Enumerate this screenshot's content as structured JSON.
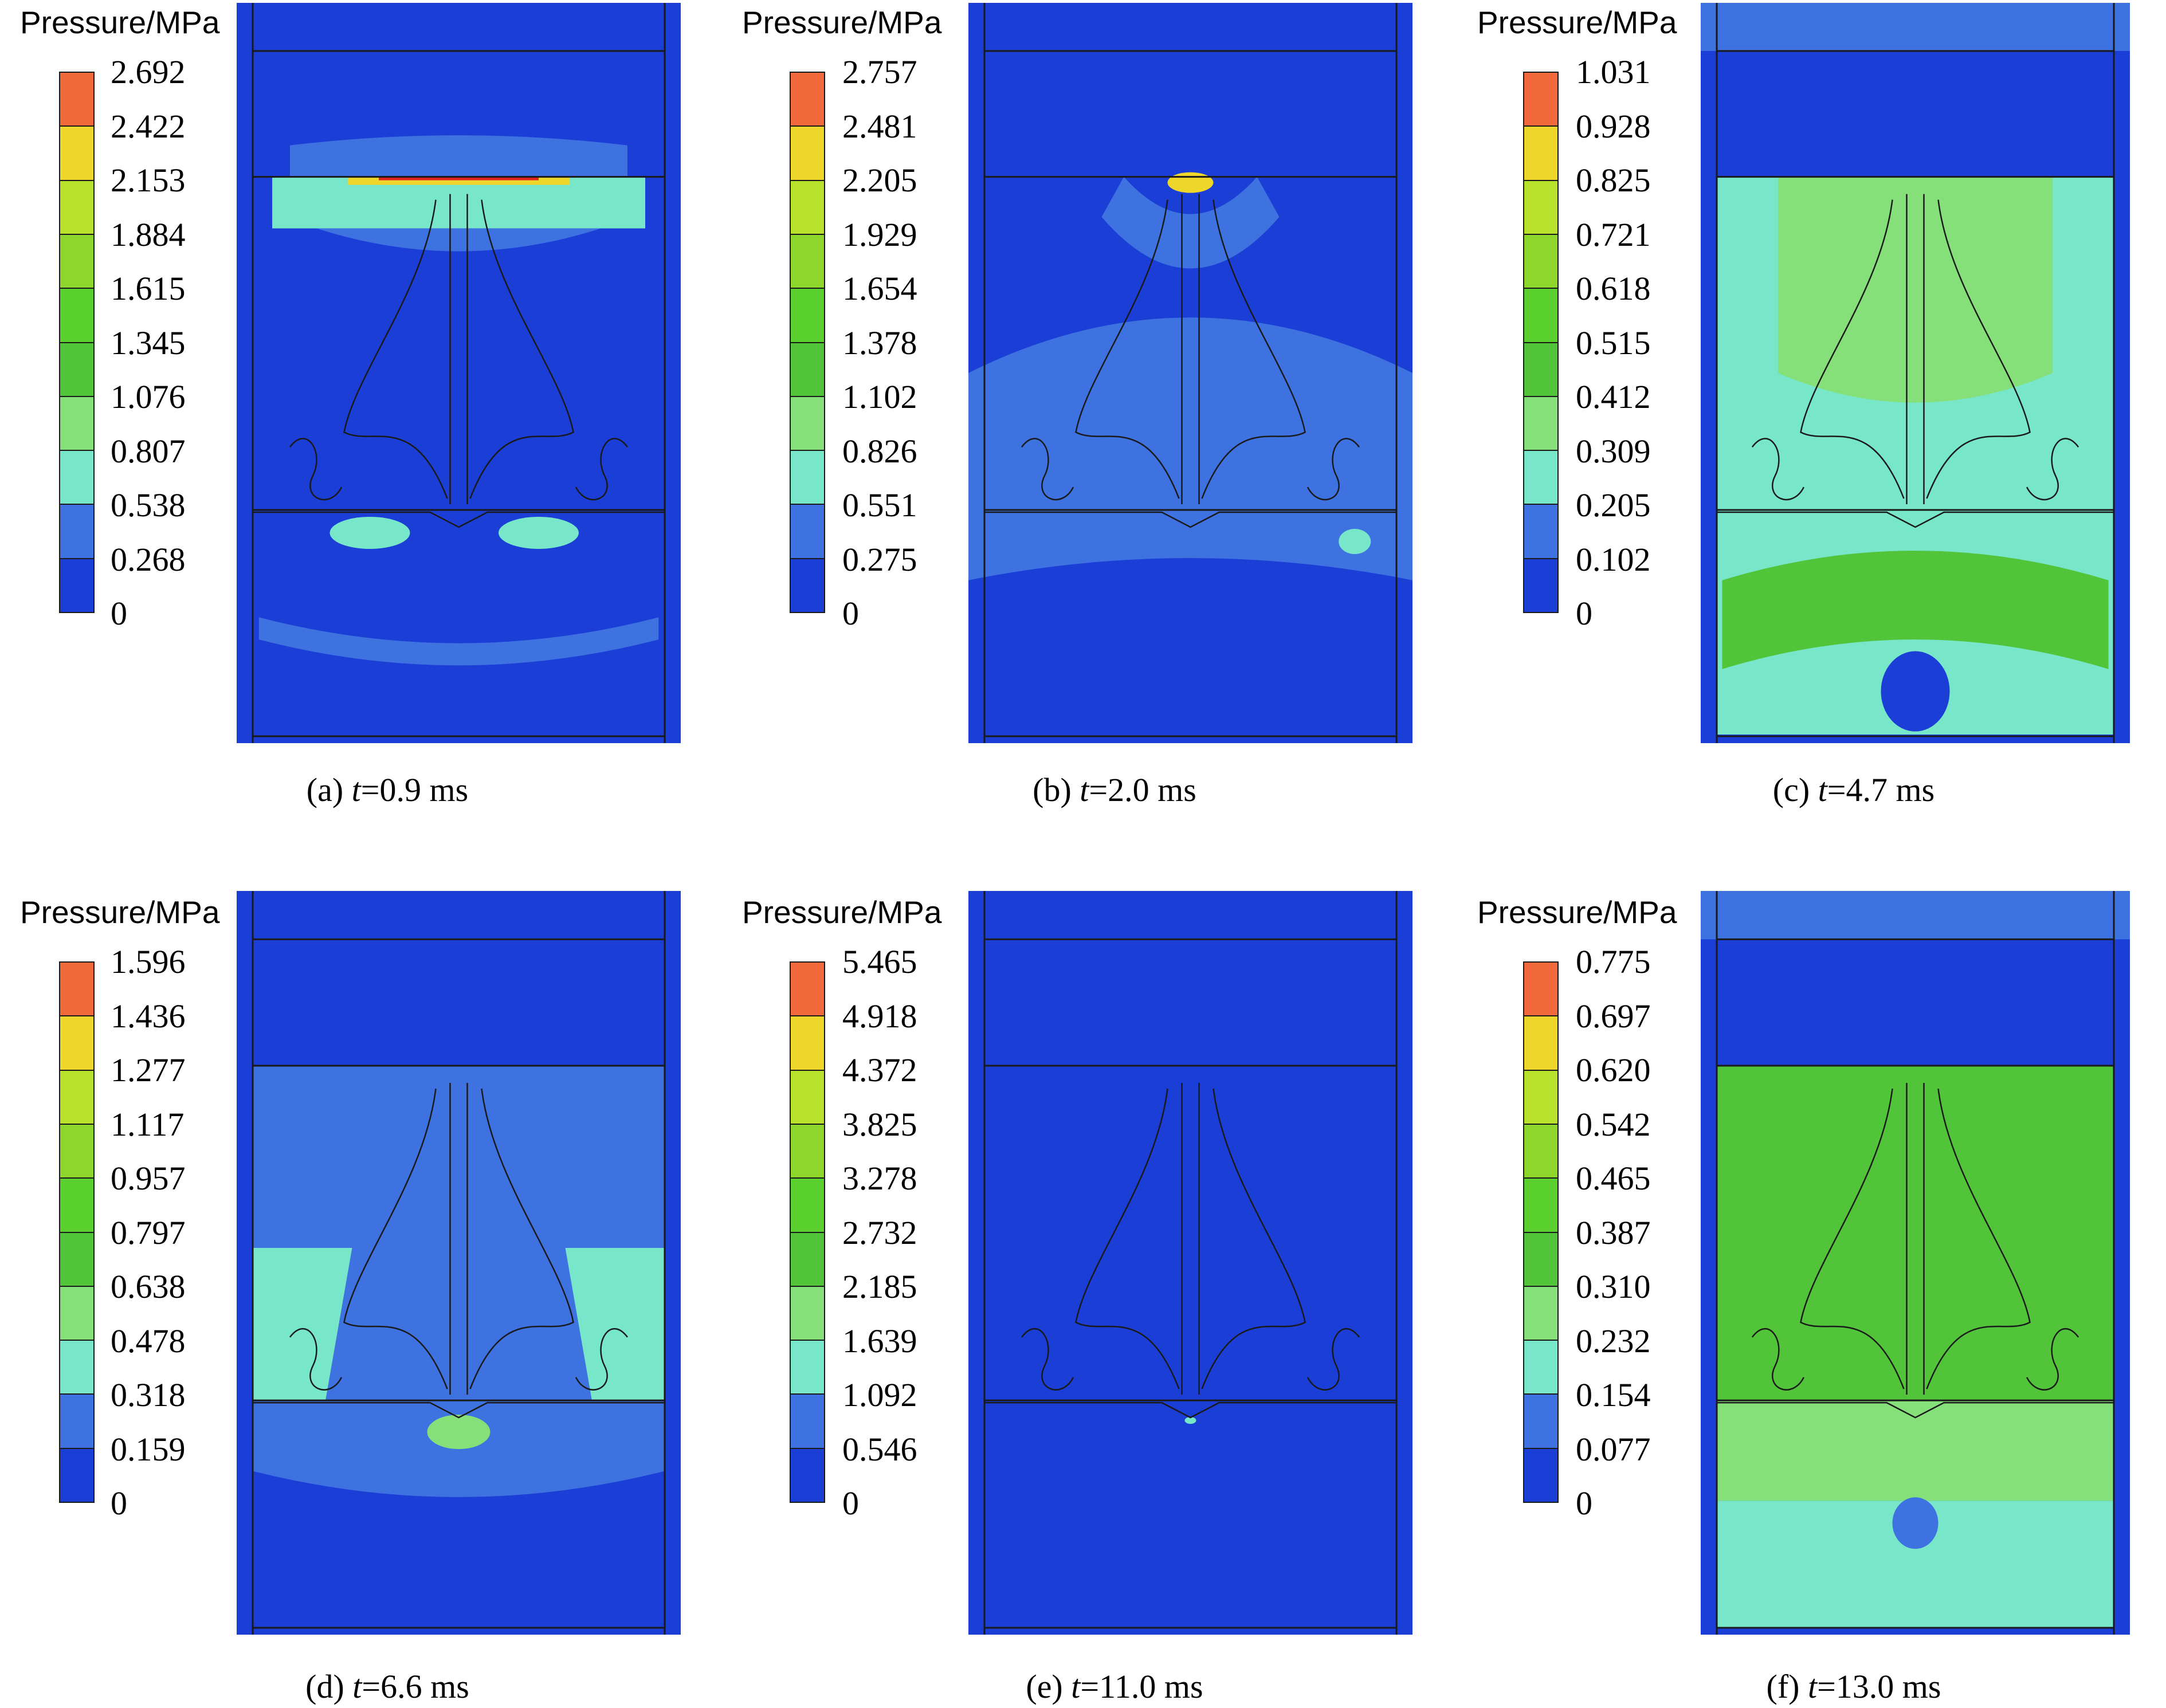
{
  "legend_title": "Pressure/MPa",
  "colors": {
    "scale": [
      "#1a3ed6",
      "#3d72e0",
      "#78e6c8",
      "#86e07a",
      "#52c43a",
      "#5ad12e",
      "#8fd62c",
      "#b7e12a",
      "#efd62b",
      "#f26a3c",
      "#e3231e"
    ],
    "contour_line": "#1a1a1a",
    "frame": "#1638d9"
  },
  "panels": [
    {
      "id": "a",
      "caption_prefix": "(a) ",
      "caption_var": "t",
      "caption_value": "=0.9 ms",
      "ticks": [
        "2.692",
        "2.422",
        "2.153",
        "1.884",
        "1.615",
        "1.345",
        "1.076",
        "0.807",
        "0.538",
        "0.268",
        "0"
      ]
    },
    {
      "id": "b",
      "caption_prefix": "(b) ",
      "caption_var": "t",
      "caption_value": "=2.0 ms",
      "ticks": [
        "2.757",
        "2.481",
        "2.205",
        "1.929",
        "1.654",
        "1.378",
        "1.102",
        "0.826",
        "0.551",
        "0.275",
        "0"
      ]
    },
    {
      "id": "c",
      "caption_prefix": "(c) ",
      "caption_var": "t",
      "caption_value": "=4.7 ms",
      "ticks": [
        "1.031",
        "0.928",
        "0.825",
        "0.721",
        "0.618",
        "0.515",
        "0.412",
        "0.309",
        "0.205",
        "0.102",
        "0"
      ]
    },
    {
      "id": "d",
      "caption_prefix": "(d) ",
      "caption_var": "t",
      "caption_value": "=6.6 ms",
      "ticks": [
        "1.596",
        "1.436",
        "1.277",
        "1.117",
        "0.957",
        "0.797",
        "0.638",
        "0.478",
        "0.318",
        "0.159",
        "0"
      ]
    },
    {
      "id": "e",
      "caption_prefix": "(e) ",
      "caption_var": "t",
      "caption_value": "=11.0 ms",
      "ticks": [
        "5.465",
        "4.918",
        "4.372",
        "3.825",
        "3.278",
        "2.732",
        "2.185",
        "1.639",
        "1.092",
        "0.546",
        "0"
      ]
    },
    {
      "id": "f",
      "caption_prefix": "(f) ",
      "caption_var": "t",
      "caption_value": "=13.0 ms",
      "ticks": [
        "0.775",
        "0.697",
        "0.620",
        "0.542",
        "0.465",
        "0.387",
        "0.310",
        "0.232",
        "0.154",
        "0.077",
        "0"
      ]
    }
  ]
}
